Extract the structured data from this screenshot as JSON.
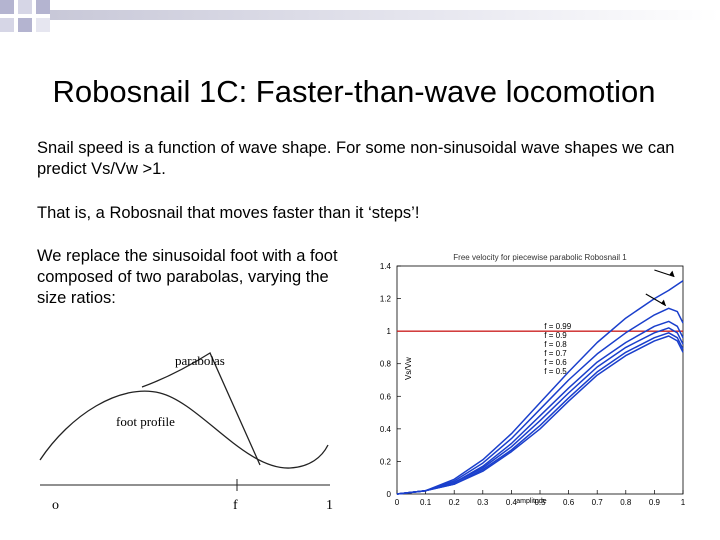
{
  "slide": {
    "title": "Robosnail 1C: Faster-than-wave locomotion",
    "para1": "Snail speed is a function of wave shape. For some non-sinusoidal wave shapes we can predict Vs/Vw >1.",
    "para2": "That is, a Robosnail that moves faster than it ‘steps’!",
    "para3": "We replace the sinusoidal foot with a foot composed of two parabolas, varying the size ratios:"
  },
  "foot_diagram": {
    "label_parabolas": "parabolas",
    "label_foot_profile": "foot profile",
    "tick_0": "o",
    "tick_f": "f",
    "tick_1": "1"
  },
  "chart_data": {
    "type": "line",
    "title": "Free velocity for piecewise parabolic Robosnail 1",
    "xlabel": "amplitude",
    "ylabel": "Vs/Vw",
    "xlim": [
      0,
      1
    ],
    "ylim": [
      0,
      1.4
    ],
    "xticks": [
      "0",
      "0.1",
      "0.2",
      "0.3",
      "0.4",
      "0.5",
      "0.6",
      "0.7",
      "0.8",
      "0.9",
      "1"
    ],
    "yticks": [
      "0",
      "0.2",
      "0.4",
      "0.6",
      "0.8",
      "1",
      "1.2",
      "1.4"
    ],
    "reference_line": {
      "y": 1,
      "color": "#cc2222"
    },
    "legend": [
      "f = 0.99",
      "f = 0.9",
      "f = 0.8",
      "f = 0.7",
      "f = 0.6",
      "f = 0.5"
    ],
    "series_color": "#1a3fcc",
    "series": [
      {
        "name": "f = 0.99",
        "x": [
          0,
          0.1,
          0.2,
          0.3,
          0.4,
          0.5,
          0.6,
          0.7,
          0.8,
          0.9,
          0.95,
          1.0
        ],
        "y": [
          0,
          0.02,
          0.09,
          0.21,
          0.37,
          0.56,
          0.75,
          0.93,
          1.08,
          1.2,
          1.25,
          1.31
        ]
      },
      {
        "name": "f = 0.9",
        "x": [
          0,
          0.1,
          0.2,
          0.3,
          0.4,
          0.5,
          0.6,
          0.7,
          0.8,
          0.9,
          0.95,
          0.98,
          1.0
        ],
        "y": [
          0,
          0.02,
          0.08,
          0.19,
          0.34,
          0.52,
          0.7,
          0.86,
          0.99,
          1.1,
          1.14,
          1.12,
          1.05
        ]
      },
      {
        "name": "f = 0.8",
        "x": [
          0,
          0.1,
          0.2,
          0.3,
          0.4,
          0.5,
          0.6,
          0.7,
          0.8,
          0.9,
          0.95,
          0.98,
          1.0
        ],
        "y": [
          0,
          0.02,
          0.07,
          0.17,
          0.31,
          0.48,
          0.65,
          0.81,
          0.93,
          1.03,
          1.06,
          1.03,
          0.96
        ]
      },
      {
        "name": "f = 0.7",
        "x": [
          0,
          0.1,
          0.2,
          0.3,
          0.4,
          0.5,
          0.6,
          0.7,
          0.8,
          0.9,
          0.95,
          0.98,
          1.0
        ],
        "y": [
          0,
          0.02,
          0.07,
          0.16,
          0.29,
          0.45,
          0.62,
          0.78,
          0.9,
          0.99,
          1.02,
          0.99,
          0.92
        ]
      },
      {
        "name": "f = 0.6",
        "x": [
          0,
          0.1,
          0.2,
          0.3,
          0.4,
          0.5,
          0.6,
          0.7,
          0.8,
          0.9,
          0.95,
          0.98,
          1.0
        ],
        "y": [
          0,
          0.02,
          0.06,
          0.15,
          0.27,
          0.42,
          0.59,
          0.75,
          0.87,
          0.96,
          0.99,
          0.96,
          0.89
        ]
      },
      {
        "name": "f = 0.5",
        "x": [
          0,
          0.1,
          0.2,
          0.3,
          0.4,
          0.5,
          0.6,
          0.7,
          0.8,
          0.9,
          0.95,
          0.98,
          1.0
        ],
        "y": [
          0,
          0.02,
          0.06,
          0.14,
          0.26,
          0.4,
          0.57,
          0.73,
          0.85,
          0.94,
          0.97,
          0.94,
          0.87
        ]
      }
    ]
  }
}
